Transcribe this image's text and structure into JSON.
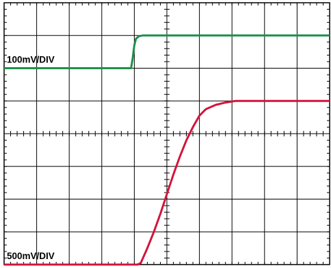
{
  "chart_data": {
    "type": "line",
    "title": "",
    "xlabel": "",
    "ylabel": "",
    "grid": true,
    "x_divisions": 10,
    "y_divisions": 8,
    "xlim": [
      0,
      10
    ],
    "ylim": [
      0,
      8
    ],
    "series": [
      {
        "name": "",
        "scale_label": "100mV/DIV",
        "color": "#1f8f4a",
        "x": [
          0,
          3.9,
          3.95,
          4.0,
          4.05,
          4.15,
          4.25,
          10
        ],
        "y": [
          6.0,
          6.0,
          6.3,
          6.7,
          6.9,
          6.98,
          7.0,
          7.0
        ]
      },
      {
        "name": "",
        "scale_label": "500mV/DIV",
        "color": "#d2143c",
        "x": [
          0,
          4.1,
          4.2,
          4.4,
          4.6,
          4.8,
          5.0,
          5.2,
          5.4,
          5.6,
          5.8,
          6.0,
          6.2,
          6.5,
          6.8,
          7.1,
          10
        ],
        "y": [
          0.0,
          0.0,
          0.05,
          0.5,
          1.0,
          1.55,
          2.15,
          2.75,
          3.3,
          3.8,
          4.2,
          4.55,
          4.75,
          4.88,
          4.95,
          5.0,
          5.0
        ]
      }
    ]
  }
}
